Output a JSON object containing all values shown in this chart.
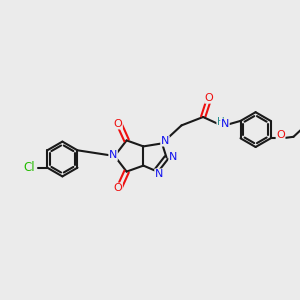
{
  "background_color": "#ebebeb",
  "bond_color": "#1a1a1a",
  "bond_width": 1.5,
  "atom_colors": {
    "C": "#111111",
    "N": "#1010ee",
    "O": "#ee1010",
    "Cl": "#22bb00",
    "H": "#2a9090"
  },
  "font_size": 8.0,
  "fig_size": [
    3.0,
    3.0
  ],
  "dpi": 100
}
